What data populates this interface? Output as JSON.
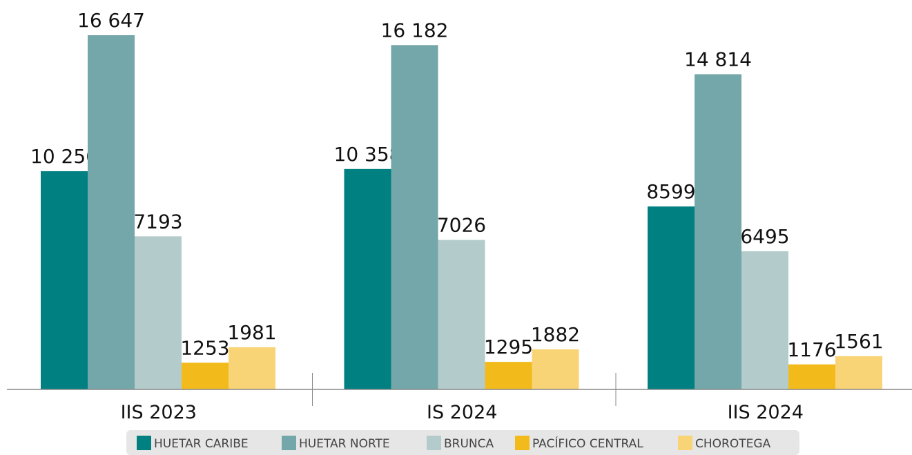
{
  "chart_data": {
    "type": "bar",
    "categories": [
      "IIS 2023",
      "IS 2024",
      "IIS 2024"
    ],
    "series": [
      {
        "name": "HUETAR CARIBE",
        "color": "#008080",
        "values": [
          10256,
          10358,
          8599
        ],
        "value_labels": [
          "10 256",
          "10 358",
          "8599"
        ]
      },
      {
        "name": "HUETAR NORTE",
        "color": "#74a7a9",
        "values": [
          16647,
          16182,
          14814
        ],
        "value_labels": [
          "16 647",
          "16 182",
          "14 814"
        ]
      },
      {
        "name": "BRUNCA",
        "color": "#b4cbcc",
        "values": [
          7193,
          7026,
          6495
        ],
        "value_labels": [
          "7193",
          "7026",
          "6495"
        ]
      },
      {
        "name": "PACÍFICO CENTRAL",
        "color": "#f2bb1b",
        "values": [
          1253,
          1295,
          1176
        ],
        "value_labels": [
          "1253",
          "1295",
          "1176"
        ]
      },
      {
        "name": "CHOROTEGA",
        "color": "#f8d477",
        "values": [
          1981,
          1882,
          1561
        ],
        "value_labels": [
          "1981",
          "1882",
          "1561"
        ]
      }
    ]
  }
}
